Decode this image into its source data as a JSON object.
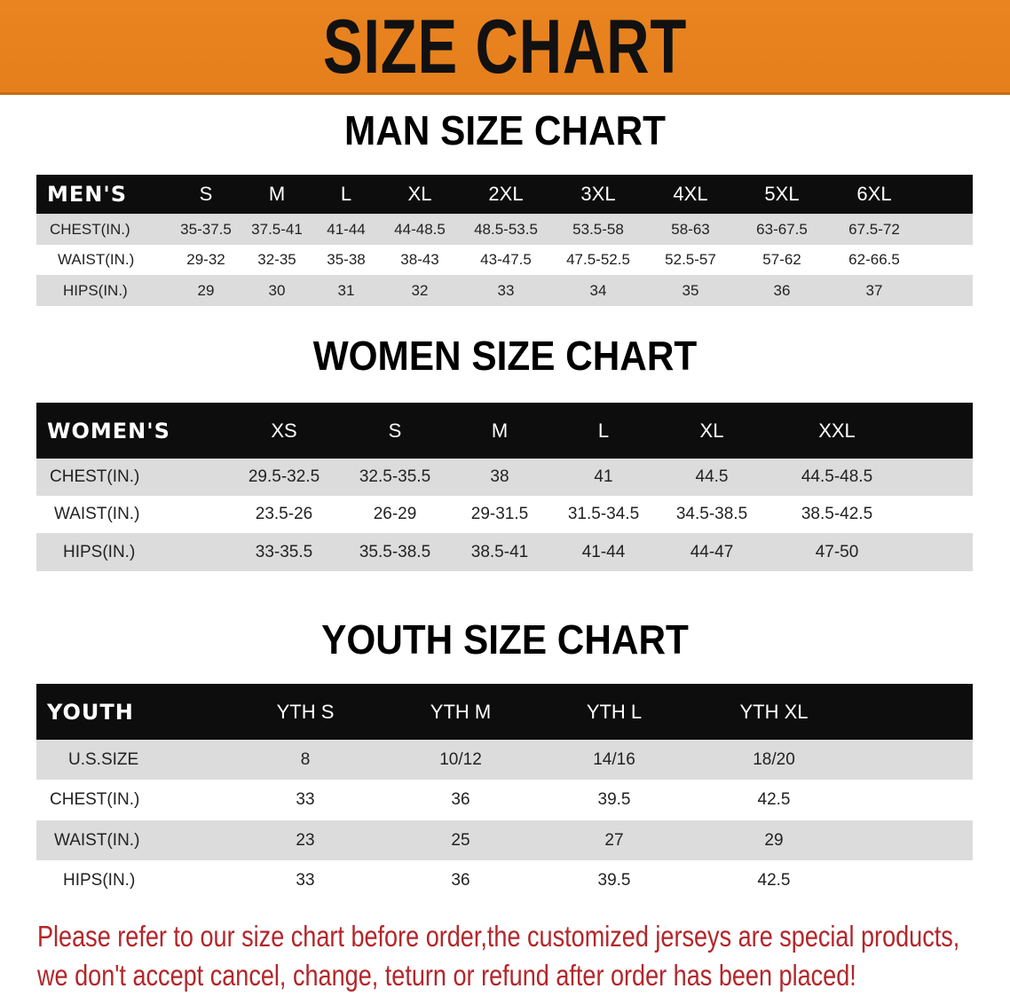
{
  "banner": {
    "title": "SIZE CHART",
    "color": "#E8821E"
  },
  "men": {
    "title": "MAN SIZE CHART",
    "header": [
      "MEN'S",
      "S",
      "M",
      "L",
      "XL",
      "2XL",
      "3XL",
      "4XL",
      "5XL",
      "6XL"
    ],
    "rows": [
      [
        "CHEST(IN.)",
        "35-37.5",
        "37.5-41",
        "41-44",
        "44-48.5",
        "48.5-53.5",
        "53.5-58",
        "58-63",
        "63-67.5",
        "67.5-72"
      ],
      [
        "WAIST(IN.)",
        "29-32",
        "32-35",
        "35-38",
        "38-43",
        "43-47.5",
        "47.5-52.5",
        "52.5-57",
        "57-62",
        "62-66.5"
      ],
      [
        "HIPS(IN.)",
        "29",
        "30",
        "31",
        "32",
        "33",
        "34",
        "35",
        "36",
        "37"
      ]
    ]
  },
  "women": {
    "title": "WOMEN SIZE CHART",
    "header": [
      "WOMEN'S",
      "XS",
      "S",
      "M",
      "L",
      "XL",
      "XXL"
    ],
    "rows": [
      [
        "CHEST(IN.)",
        "29.5-32.5",
        "32.5-35.5",
        "38",
        "41",
        "44.5",
        "44.5-48.5"
      ],
      [
        "WAIST(IN.)",
        "23.5-26",
        "26-29",
        "29-31.5",
        "31.5-34.5",
        "34.5-38.5",
        "38.5-42.5"
      ],
      [
        "HIPS(IN.)",
        "33-35.5",
        "35.5-38.5",
        "38.5-41",
        "41-44",
        "44-47",
        "47-50"
      ]
    ]
  },
  "youth": {
    "title": "YOUTH SIZE CHART",
    "header": [
      "YOUTH",
      "YTH S",
      "YTH M",
      "YTH L",
      "YTH XL"
    ],
    "rows": [
      [
        "U.S.SIZE",
        "8",
        "10/12",
        "14/16",
        "18/20"
      ],
      [
        "CHEST(IN.)",
        "33",
        "36",
        "39.5",
        "42.5"
      ],
      [
        "WAIST(IN.)",
        "23",
        "25",
        "27",
        "29"
      ],
      [
        "HIPS(IN.)",
        "33",
        "36",
        "39.5",
        "42.5"
      ]
    ]
  },
  "notice": {
    "line1": "Please refer to our size chart before order,the customized jerseys are special products,",
    "line2": "we don't accept cancel, change, teturn or refund after order has been placed!",
    "color": "#B3262A"
  }
}
